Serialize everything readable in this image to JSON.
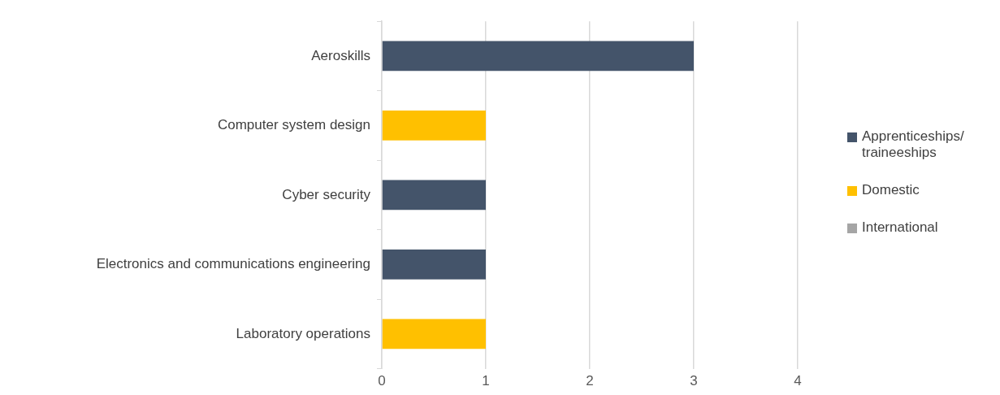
{
  "chart_data": {
    "type": "bar",
    "orientation": "horizontal",
    "stacked": true,
    "categories": [
      "Aeroskills",
      "Computer system design",
      "Cyber security",
      "Electronics and communications engineering",
      "Laboratory operations"
    ],
    "series": [
      {
        "name": "Apprenticeships/ traineeships",
        "color": "#44546a",
        "values": [
          3,
          0,
          1,
          1,
          0
        ]
      },
      {
        "name": "Domestic",
        "color": "#ffc000",
        "values": [
          0,
          1,
          0,
          0,
          1
        ]
      },
      {
        "name": "International",
        "color": "#a5a5a5",
        "values": [
          0,
          0,
          0,
          0,
          0
        ]
      }
    ],
    "xlim": [
      0,
      4
    ],
    "xticks": [
      0,
      1,
      2,
      3,
      4
    ],
    "grid": "x",
    "legend": "right"
  }
}
